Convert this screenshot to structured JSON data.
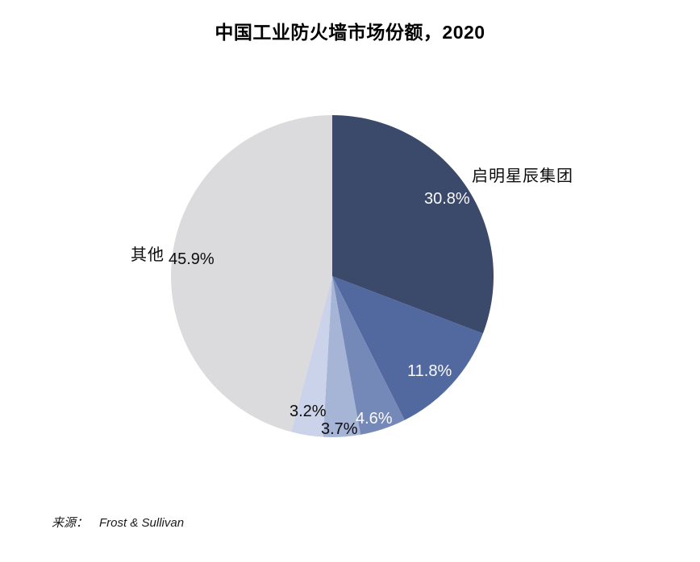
{
  "title": "中国工业防火墙市场份额，2020",
  "source": {
    "prefix": "来源：",
    "text": "Frost & Sullivan"
  },
  "chart_data": {
    "type": "pie",
    "title": "中国工业防火墙市场份额，2020",
    "start_angle_deg": 0,
    "direction": "clockwise",
    "legend": "none",
    "slices": [
      {
        "name": "启明星辰集团",
        "value": 30.8,
        "label": "30.8%",
        "color": "#3B4A6B",
        "label_color": "#ffffff"
      },
      {
        "name": "",
        "value": 11.8,
        "label": "11.8%",
        "color": "#5269A0",
        "label_color": "#ffffff"
      },
      {
        "name": "",
        "value": 4.6,
        "label": "4.6%",
        "color": "#7589B9",
        "label_color": "#ffffff"
      },
      {
        "name": "",
        "value": 3.7,
        "label": "3.7%",
        "color": "#A6B4D6",
        "label_color": "#0d0d0d"
      },
      {
        "name": "",
        "value": 3.2,
        "label": "3.2%",
        "color": "#CAD3E9",
        "label_color": "#0d0d0d"
      },
      {
        "name": "其他",
        "value": 45.9,
        "label": "45.9%",
        "color": "#DBDBDE",
        "label_color": "#0d0d0d"
      }
    ]
  }
}
